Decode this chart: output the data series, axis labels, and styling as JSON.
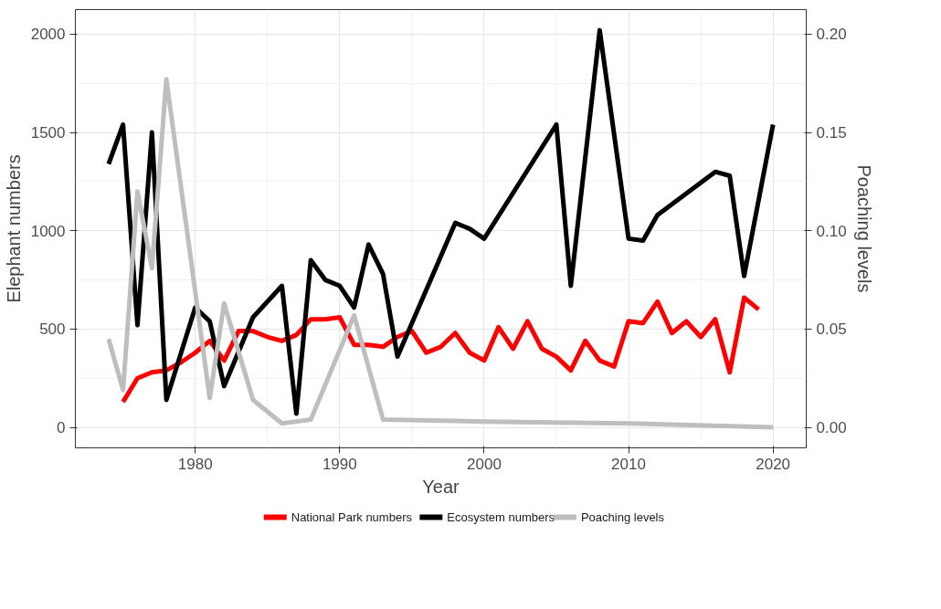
{
  "chart_data": {
    "type": "line",
    "xlabel": "Year",
    "ylabel": "Elephant numbers",
    "y2label": "Poaching levels",
    "xlim": [
      1971.7,
      2022.3
    ],
    "xticks": [
      1980,
      1990,
      2000,
      2010,
      2020
    ],
    "ylim": [
      -104,
      2125
    ],
    "yticks": [
      0,
      500,
      1000,
      1500,
      2000
    ],
    "y2lim": [
      -0.0104,
      0.2125
    ],
    "y2ticks": [
      {
        "value": 0,
        "label": "0.00"
      },
      {
        "value": 0.05,
        "label": "0.05"
      },
      {
        "value": 0.1,
        "label": "0.10"
      },
      {
        "value": 0.15,
        "label": "0.15"
      },
      {
        "value": 0.2,
        "label": "0.20"
      }
    ],
    "grid": true,
    "legend": "bottom",
    "line_style": "solid",
    "series": [
      {
        "name": "National Park numbers",
        "color": "#ff0000",
        "x": [
          1975,
          1976,
          1977,
          1978,
          1979,
          1980,
          1981,
          1982,
          1983,
          1984,
          1985,
          1986,
          1987,
          1988,
          1989,
          1990,
          1991,
          1992,
          1993,
          1994,
          1995,
          1996,
          1997,
          1998,
          1999,
          2000,
          2001,
          2002,
          2003,
          2004,
          2005,
          2006,
          2007,
          2008,
          2009,
          2010,
          2011,
          2012,
          2013,
          2014,
          2015,
          2016,
          2017,
          2018,
          2019
        ],
        "values": [
          130,
          250,
          280,
          290,
          330,
          380,
          440,
          340,
          490,
          490,
          460,
          440,
          470,
          550,
          550,
          560,
          420,
          420,
          410,
          460,
          490,
          380,
          410,
          480,
          380,
          340,
          510,
          400,
          540,
          400,
          360,
          290,
          440,
          340,
          310,
          540,
          530,
          640,
          480,
          540,
          460,
          550,
          280,
          660,
          600
        ]
      },
      {
        "name": "Ecosystem numbers",
        "color": "#000000",
        "x": [
          1974,
          1975,
          1976,
          1977,
          1978,
          1980,
          1981,
          1982,
          1984,
          1986,
          1987,
          1988,
          1989,
          1990,
          1991,
          1992,
          1993,
          1994,
          1998,
          1999,
          2000,
          2005,
          2006,
          2008,
          2010,
          2011,
          2012,
          2016,
          2017,
          2018,
          2020
        ],
        "values": [
          1340,
          1540,
          520,
          1500,
          140,
          610,
          540,
          210,
          560,
          720,
          70,
          850,
          750,
          720,
          610,
          930,
          780,
          360,
          1040,
          1010,
          960,
          1540,
          720,
          2020,
          960,
          950,
          1080,
          1300,
          1280,
          770,
          1540
        ]
      },
      {
        "name": "Poaching levels",
        "color": "#bebebe",
        "axis": "y2",
        "x": [
          1974,
          1975,
          1976,
          1977,
          1978,
          1981,
          1982,
          1984,
          1986,
          1987,
          1988,
          1991,
          1993,
          2000,
          2010,
          2020
        ],
        "values": [
          0.045,
          0.019,
          0.12,
          0.081,
          0.177,
          0.015,
          0.063,
          0.014,
          0.002,
          0.003,
          0.004,
          0.057,
          0.004,
          0.003,
          0.002,
          0.0
        ]
      }
    ]
  }
}
